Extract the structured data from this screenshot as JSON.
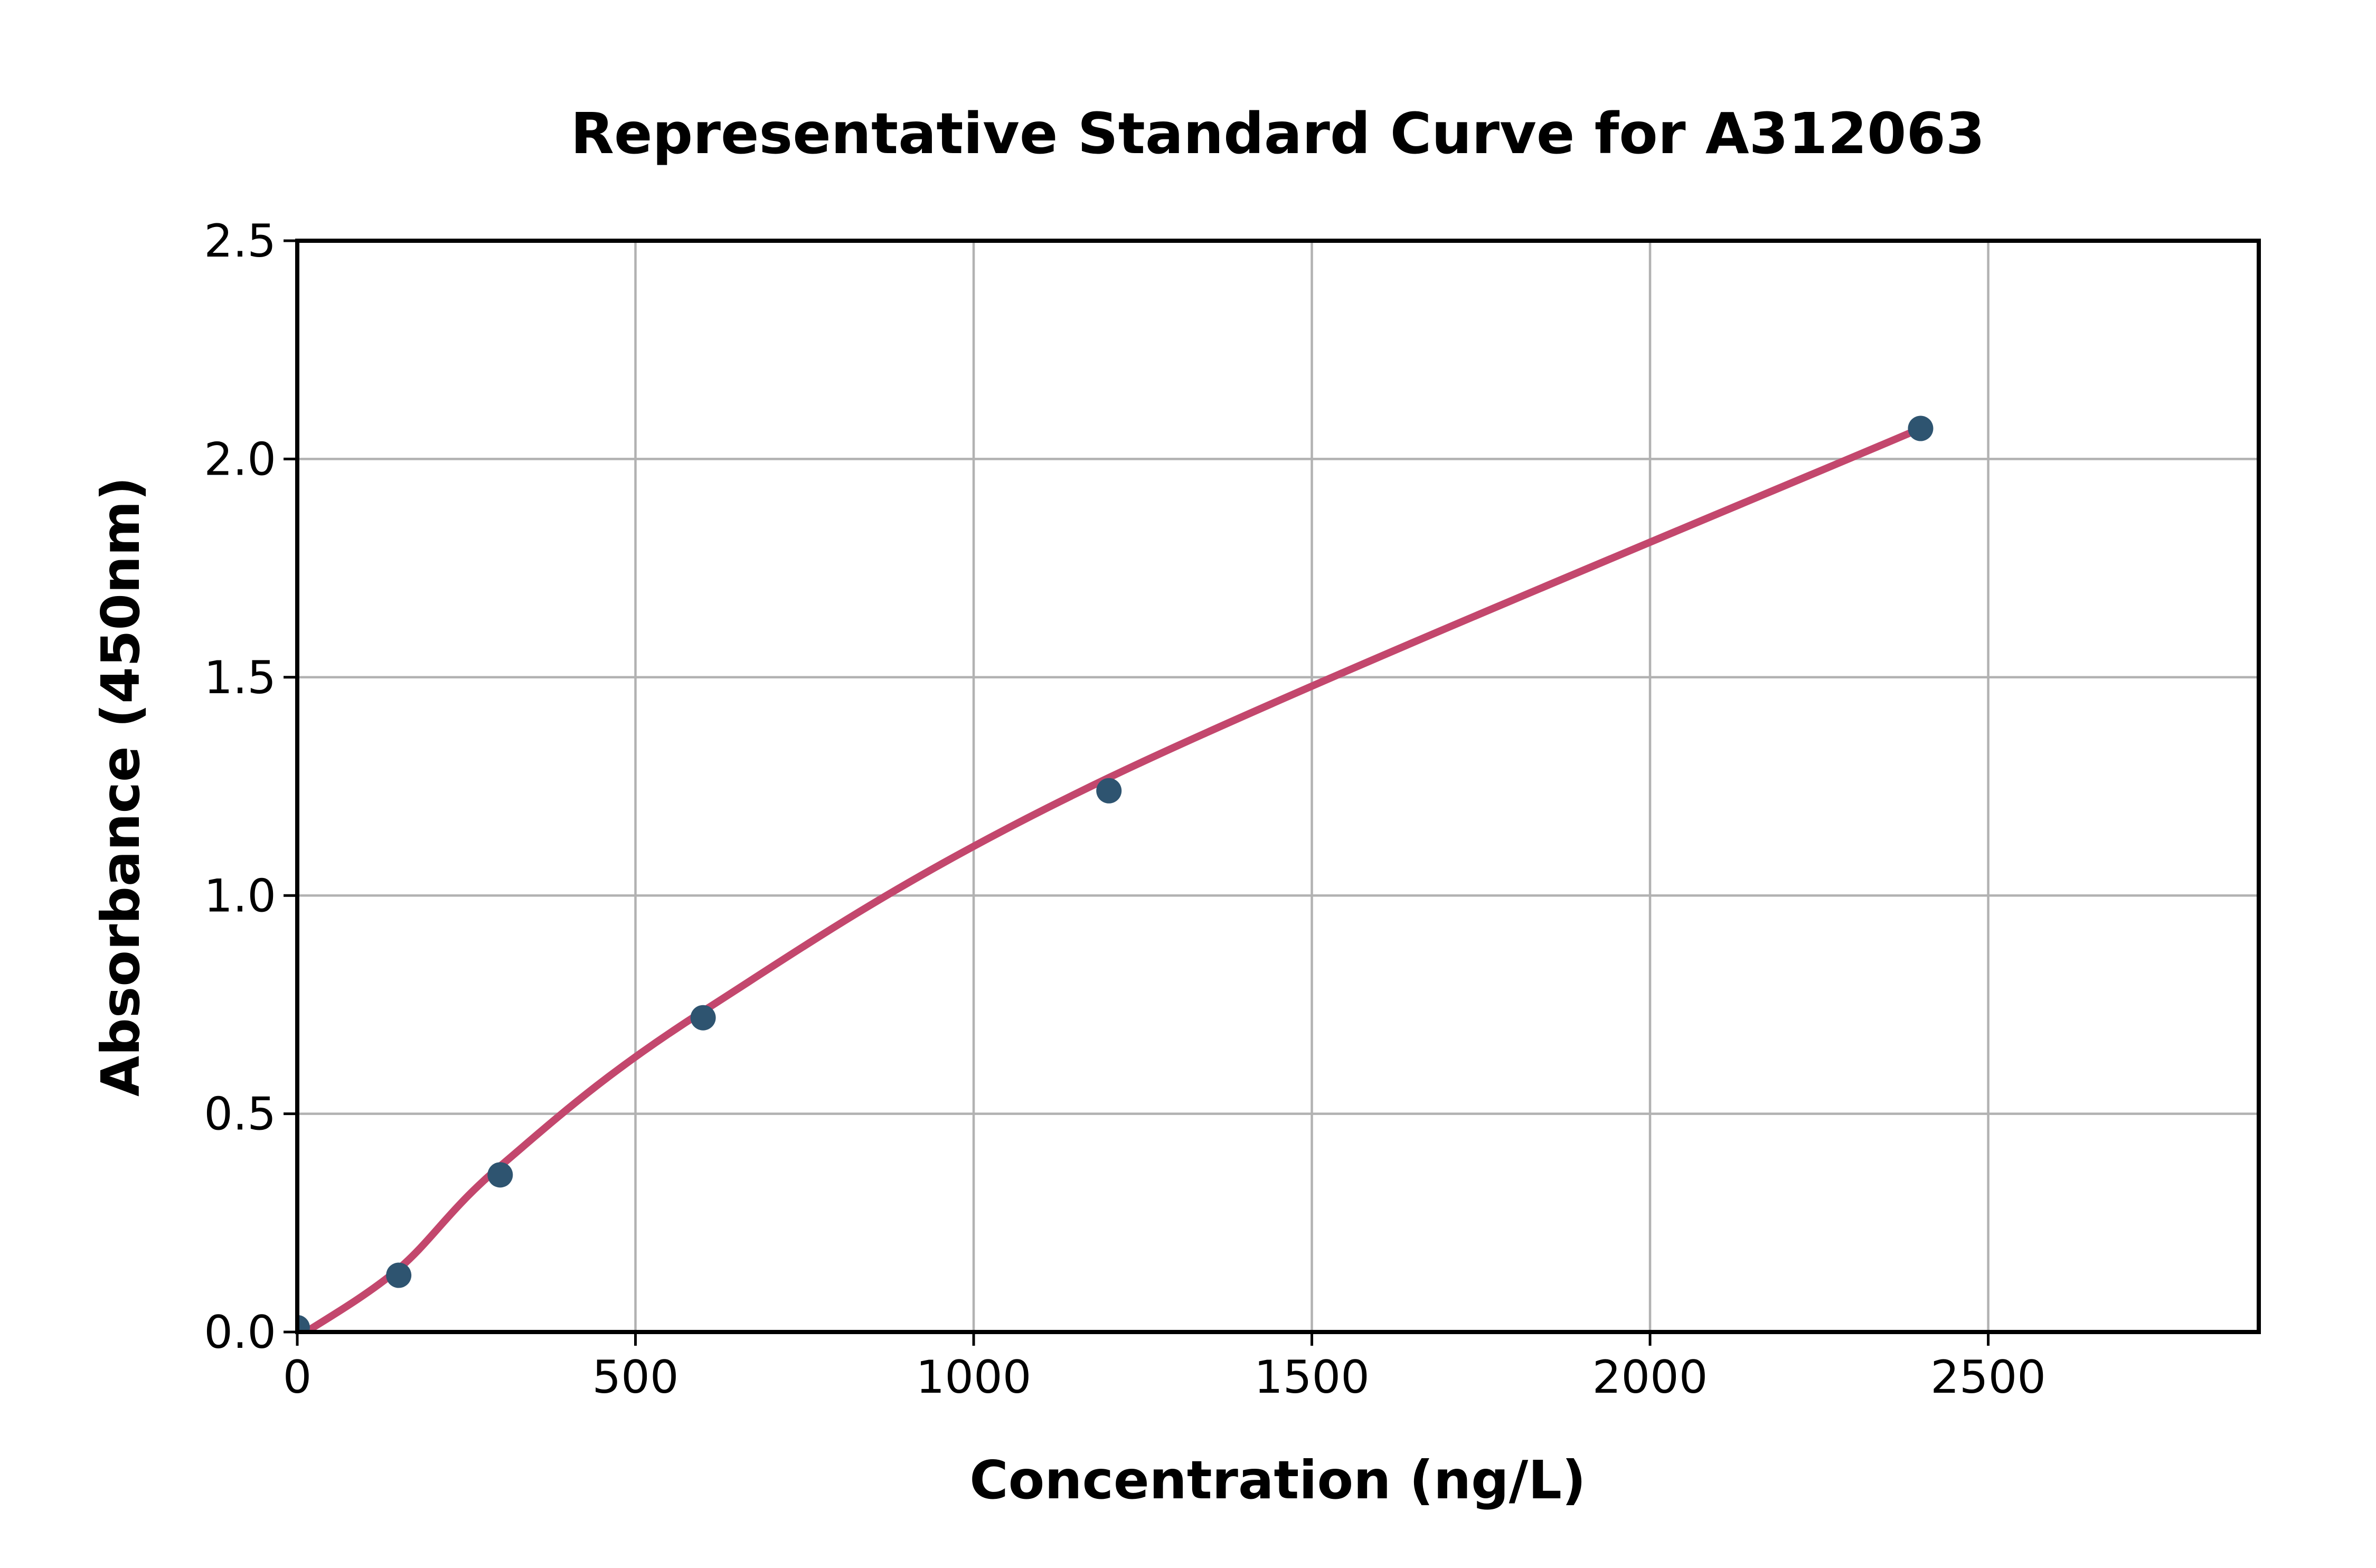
{
  "figure": {
    "background": "#ffffff"
  },
  "chart_data": {
    "type": "scatter",
    "title": "Representative Standard Curve for A312063",
    "xlabel": "Concentration (ng/L)",
    "ylabel": "Absorbance (450nm)",
    "xlim": [
      0,
      2900
    ],
    "ylim": [
      0,
      2.5
    ],
    "x_ticks": [
      0,
      500,
      1000,
      1500,
      2000,
      2500
    ],
    "x_tick_labels": [
      "0",
      "500",
      "1000",
      "1500",
      "2000",
      "2500"
    ],
    "y_ticks": [
      0,
      0.5,
      1,
      1.5,
      2,
      2.5
    ],
    "y_tick_labels": [
      "0.0",
      "0.5",
      "1.0",
      "1.5",
      "2.0",
      "2.5"
    ],
    "grid": true,
    "legend": null,
    "series": [
      {
        "name": "standard-points",
        "type": "scatter",
        "color": "#2e5470",
        "marker_radius_px": 24,
        "points": [
          [
            0,
            0.01
          ],
          [
            150,
            0.13
          ],
          [
            300,
            0.36
          ],
          [
            600,
            0.72
          ],
          [
            1200,
            1.24
          ],
          [
            2400,
            2.07
          ]
        ]
      },
      {
        "name": "fitted-curve",
        "type": "line",
        "color": "#c3476d",
        "stroke_width_px": 14,
        "points": [
          [
            8,
            -0.005
          ],
          [
            150,
            0.145
          ],
          [
            300,
            0.38
          ],
          [
            600,
            0.735
          ],
          [
            1200,
            1.27
          ],
          [
            2400,
            2.07
          ]
        ]
      }
    ],
    "style": {
      "grid_color": "#b2b2b2",
      "axes_color": "#000000",
      "tick_color": "#000000",
      "text_color": "#000000"
    }
  }
}
